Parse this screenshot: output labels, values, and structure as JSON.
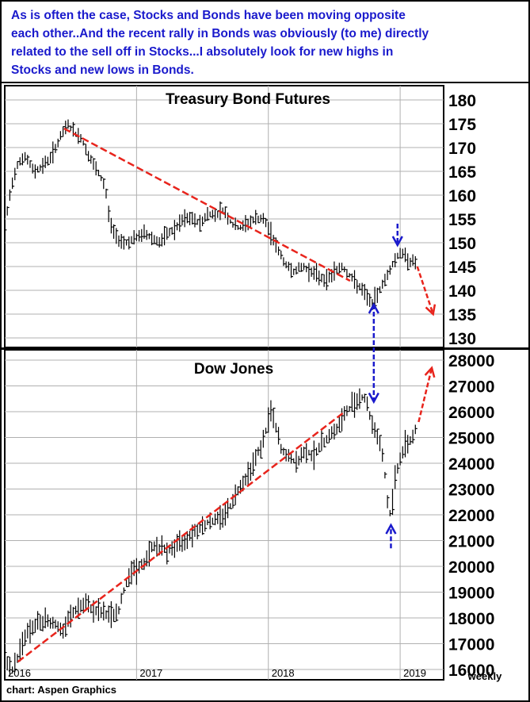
{
  "annotation": {
    "lines": [
      "As is often the case, Stocks and Bonds have been moving opposite",
      "each other..And the recent rally in Bonds was obviously (to me) directly",
      "related to the sell off in Stocks...I absolutely look for new highs in",
      "Stocks and new lows in Bonds."
    ]
  },
  "footer": {
    "source": "chart: Aspen Graphics",
    "frequency": "weekly"
  },
  "colors": {
    "annotation_text": "#1a1acc",
    "bars": "#000000",
    "trendline": "#e8241c",
    "arrow_blue": "#1a1acc",
    "arrow_red": "#e8241c",
    "grid": "#b0b0b0"
  },
  "chart_data": [
    {
      "type": "line",
      "title": "Treasury Bond Futures",
      "y_ticks": [
        130,
        135,
        140,
        145,
        150,
        155,
        160,
        165,
        170,
        175,
        180
      ],
      "ylim": [
        128,
        183
      ],
      "xlim": [
        2016.0,
        2019.33
      ],
      "grid": true,
      "points": [
        [
          2016.0,
          153
        ],
        [
          2016.05,
          162
        ],
        [
          2016.1,
          167
        ],
        [
          2016.16,
          168
        ],
        [
          2016.22,
          165
        ],
        [
          2016.28,
          166
        ],
        [
          2016.35,
          168
        ],
        [
          2016.42,
          172
        ],
        [
          2016.48,
          175
        ],
        [
          2016.53,
          173
        ],
        [
          2016.58,
          172
        ],
        [
          2016.64,
          168
        ],
        [
          2016.7,
          165
        ],
        [
          2016.76,
          162
        ],
        [
          2016.8,
          154
        ],
        [
          2016.85,
          151
        ],
        [
          2016.92,
          150
        ],
        [
          2017.0,
          151
        ],
        [
          2017.06,
          152
        ],
        [
          2017.12,
          151
        ],
        [
          2017.18,
          150
        ],
        [
          2017.24,
          152
        ],
        [
          2017.3,
          153
        ],
        [
          2017.36,
          155
        ],
        [
          2017.42,
          155
        ],
        [
          2017.48,
          154
        ],
        [
          2017.54,
          156
        ],
        [
          2017.6,
          156
        ],
        [
          2017.66,
          157
        ],
        [
          2017.72,
          154
        ],
        [
          2017.78,
          153
        ],
        [
          2017.84,
          154
        ],
        [
          2017.9,
          155
        ],
        [
          2017.96,
          155
        ],
        [
          2018.02,
          152
        ],
        [
          2018.08,
          148
        ],
        [
          2018.14,
          145
        ],
        [
          2018.2,
          144
        ],
        [
          2018.26,
          145
        ],
        [
          2018.32,
          144
        ],
        [
          2018.38,
          143
        ],
        [
          2018.44,
          142
        ],
        [
          2018.5,
          144
        ],
        [
          2018.56,
          145
        ],
        [
          2018.62,
          143
        ],
        [
          2018.68,
          141
        ],
        [
          2018.74,
          139
        ],
        [
          2018.79,
          137
        ],
        [
          2018.84,
          140
        ],
        [
          2018.9,
          143
        ],
        [
          2018.95,
          146
        ],
        [
          2019.0,
          148
        ],
        [
          2019.04,
          147
        ],
        [
          2019.08,
          146
        ],
        [
          2019.12,
          146
        ]
      ],
      "trendline": [
        [
          2016.45,
          174
        ],
        [
          2018.62,
          142
        ]
      ],
      "arrows": [
        {
          "color": "blue",
          "from": [
            2018.98,
            154
          ],
          "to": [
            2018.98,
            149.5
          ]
        },
        {
          "color": "red",
          "from": [
            2019.13,
            145
          ],
          "to": [
            2019.25,
            135
          ]
        }
      ]
    },
    {
      "type": "line",
      "title": "Dow Jones",
      "y_ticks": [
        16000,
        17000,
        18000,
        19000,
        20000,
        21000,
        22000,
        23000,
        24000,
        25000,
        26000,
        27000,
        28000
      ],
      "ylim": [
        15600,
        28400
      ],
      "xlim": [
        2016.0,
        2019.33
      ],
      "grid": true,
      "points": [
        [
          2016.0,
          16400
        ],
        [
          2016.05,
          15900
        ],
        [
          2016.1,
          16500
        ],
        [
          2016.15,
          17300
        ],
        [
          2016.2,
          17600
        ],
        [
          2016.26,
          17800
        ],
        [
          2016.32,
          17900
        ],
        [
          2016.38,
          17800
        ],
        [
          2016.44,
          17400
        ],
        [
          2016.5,
          18100
        ],
        [
          2016.56,
          18400
        ],
        [
          2016.62,
          18500
        ],
        [
          2016.68,
          18300
        ],
        [
          2016.74,
          18200
        ],
        [
          2016.8,
          18100
        ],
        [
          2016.86,
          18200
        ],
        [
          2016.9,
          19000
        ],
        [
          2016.95,
          19800
        ],
        [
          2017.0,
          19900
        ],
        [
          2017.06,
          20100
        ],
        [
          2017.12,
          20800
        ],
        [
          2017.18,
          20700
        ],
        [
          2017.24,
          20600
        ],
        [
          2017.3,
          20800
        ],
        [
          2017.36,
          21000
        ],
        [
          2017.42,
          21300
        ],
        [
          2017.48,
          21500
        ],
        [
          2017.54,
          21700
        ],
        [
          2017.6,
          21800
        ],
        [
          2017.66,
          22000
        ],
        [
          2017.72,
          22400
        ],
        [
          2017.78,
          23100
        ],
        [
          2017.84,
          23500
        ],
        [
          2017.9,
          24200
        ],
        [
          2017.96,
          24800
        ],
        [
          2018.02,
          26100
        ],
        [
          2018.06,
          25300
        ],
        [
          2018.1,
          24500
        ],
        [
          2018.16,
          24200
        ],
        [
          2018.22,
          24000
        ],
        [
          2018.28,
          24500
        ],
        [
          2018.34,
          24300
        ],
        [
          2018.4,
          24700
        ],
        [
          2018.46,
          25100
        ],
        [
          2018.52,
          25300
        ],
        [
          2018.58,
          25900
        ],
        [
          2018.64,
          26300
        ],
        [
          2018.7,
          26600
        ],
        [
          2018.74,
          26500
        ],
        [
          2018.78,
          25600
        ],
        [
          2018.82,
          25200
        ],
        [
          2018.86,
          24500
        ],
        [
          2018.88,
          23800
        ],
        [
          2018.9,
          22600
        ],
        [
          2018.93,
          21900
        ],
        [
          2018.96,
          23400
        ],
        [
          2019.0,
          24200
        ],
        [
          2019.04,
          24700
        ],
        [
          2019.08,
          24900
        ],
        [
          2019.12,
          25300
        ]
      ],
      "trendline": [
        [
          2016.1,
          16300
        ],
        [
          2018.58,
          26000
        ]
      ],
      "arrows": [
        {
          "color": "blue",
          "from": [
            2018.93,
            20700
          ],
          "to": [
            2018.93,
            21600
          ]
        },
        {
          "color": "red",
          "from": [
            2019.14,
            25600
          ],
          "to": [
            2019.24,
            27700
          ]
        }
      ]
    }
  ],
  "x_axis": {
    "tick_labels": [
      "2016",
      "2017",
      "2018",
      "2019"
    ]
  },
  "linked_arrow": {
    "color": "blue",
    "from_bond": [
      2018.8,
      138
    ],
    "to_dow": [
      2018.8,
      26200
    ]
  }
}
